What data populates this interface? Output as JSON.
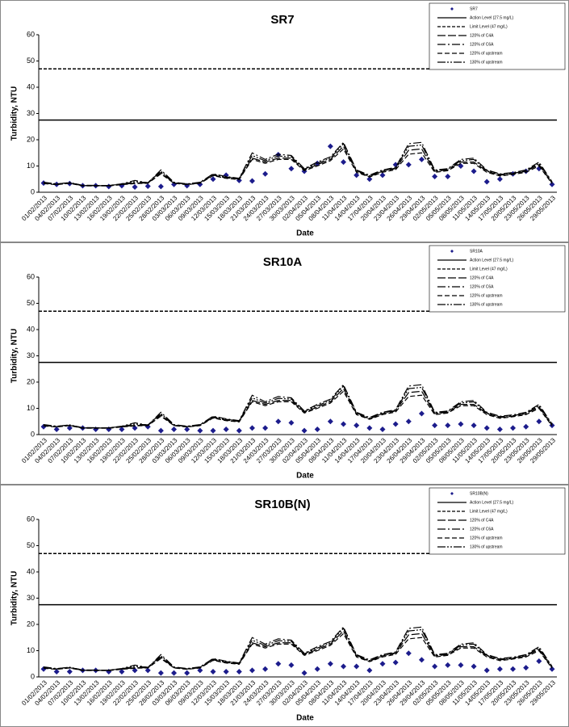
{
  "chart_data": [
    {
      "type": "line",
      "title": "SR7",
      "xlabel": "Date",
      "ylabel": "Turbidity, NTU",
      "categories": [
        "01/02/2013",
        "04/02/2013",
        "07/02/2013",
        "10/02/2013",
        "13/02/2013",
        "16/02/2013",
        "19/02/2013",
        "22/02/2013",
        "25/02/2013",
        "28/02/2013",
        "03/03/2013",
        "06/03/2013",
        "09/03/2013",
        "12/03/2013",
        "15/03/2013",
        "18/03/2013",
        "21/03/2013",
        "24/03/2013",
        "27/03/2013",
        "30/03/2013",
        "02/04/2013",
        "05/04/2013",
        "08/04/2013",
        "11/04/2013",
        "14/04/2013",
        "17/04/2013",
        "20/04/2013",
        "23/04/2013",
        "26/04/2013",
        "29/04/2013",
        "02/05/2013",
        "05/05/2013",
        "08/05/2013",
        "11/05/2013",
        "14/05/2013",
        "17/05/2013",
        "20/05/2013",
        "23/05/2013",
        "26/05/2013",
        "29/05/2013"
      ],
      "ylim": [
        0,
        60
      ],
      "yticks": [
        0,
        10,
        20,
        30,
        40,
        50,
        60
      ],
      "hlines": [
        {
          "name": "Action Level (27.5 mg/L)",
          "value": 27.5,
          "dash": "solid",
          "color": "#000000"
        },
        {
          "name": "Limit Level (47 mg/L)",
          "value": 47,
          "dash": "short",
          "color": "#000000"
        }
      ],
      "series": [
        {
          "name": "SR7",
          "style": "marker",
          "color": "#1c1c8c",
          "values": [
            3.5,
            3,
            3.3,
            2.5,
            2.5,
            2.2,
            2.5,
            2,
            2.3,
            2.2,
            3,
            2.5,
            3,
            5,
            6.5,
            4.5,
            4.3,
            7,
            14.3,
            9,
            8,
            11,
            17.5,
            11.5,
            6.5,
            5,
            6.5,
            10.5,
            10.5,
            12.5,
            6,
            6,
            10,
            8,
            4,
            5,
            7,
            8,
            9,
            3
          ]
        },
        {
          "name": "120% of C4A",
          "style": "long",
          "color": "#000000",
          "values": [
            3.5,
            3,
            3.5,
            2.5,
            2.5,
            2.5,
            3,
            3.5,
            3.5,
            7.5,
            3.5,
            3,
            3.5,
            6.5,
            5.5,
            5,
            13,
            11.5,
            13,
            13,
            8.5,
            10.5,
            12.5,
            17.5,
            8,
            6,
            8,
            9,
            16,
            16.5,
            8,
            8.5,
            11.5,
            11.5,
            8,
            6.5,
            7,
            8,
            10.5,
            3.5
          ]
        },
        {
          "name": "120% of C6A",
          "style": "dashdot",
          "color": "#000000",
          "values": [
            3.8,
            3.2,
            3.6,
            2.7,
            2.6,
            2.6,
            3.2,
            4.5,
            3.6,
            8.5,
            3.8,
            3.2,
            3.8,
            7,
            6,
            5.3,
            15,
            12.5,
            14.5,
            14,
            9,
            11.5,
            13.5,
            19,
            8.5,
            6.5,
            8.5,
            9.5,
            18.5,
            19,
            8.5,
            9,
            12.5,
            13,
            8.5,
            7,
            7.5,
            8.5,
            11.5,
            4
          ]
        },
        {
          "name": "120% of upstream",
          "style": "medium",
          "color": "#000000",
          "values": [
            3.3,
            2.9,
            3.4,
            2.4,
            2.4,
            2.4,
            2.9,
            3.3,
            3.4,
            7,
            3.4,
            2.9,
            3.4,
            6.3,
            5.3,
            4.8,
            12.5,
            11,
            12.5,
            12.5,
            8.2,
            10,
            12,
            16.5,
            7.6,
            5.8,
            7.6,
            8.6,
            14.5,
            15,
            7.6,
            8.2,
            11,
            11,
            7.6,
            6.2,
            6.8,
            7.6,
            10,
            3.3
          ]
        },
        {
          "name": "130% of upstream",
          "style": "dashdotdot",
          "color": "#000000",
          "values": [
            3.6,
            3.1,
            3.7,
            2.6,
            2.6,
            2.6,
            3.1,
            4,
            3.7,
            8,
            3.6,
            3.1,
            3.7,
            6.8,
            5.8,
            5.2,
            14,
            12,
            13.8,
            13.5,
            8.8,
            11,
            13,
            18.5,
            8.2,
            6.2,
            8.2,
            9.2,
            17.5,
            18,
            8.2,
            8.8,
            12,
            12.5,
            8.2,
            6.8,
            7.2,
            8.2,
            11,
            3.8
          ]
        }
      ]
    },
    {
      "type": "line",
      "title": "SR10A",
      "xlabel": "Date",
      "ylabel": "Turbidity, NTU",
      "categories": [
        "01/02/2013",
        "04/02/2013",
        "07/02/2013",
        "10/02/2013",
        "13/02/2013",
        "16/02/2013",
        "19/02/2013",
        "22/02/2013",
        "25/02/2013",
        "28/02/2013",
        "03/03/2013",
        "06/03/2013",
        "09/03/2013",
        "12/03/2013",
        "15/03/2013",
        "18/03/2013",
        "21/03/2013",
        "24/03/2013",
        "27/03/2013",
        "30/03/2013",
        "02/04/2013",
        "05/04/2013",
        "08/04/2013",
        "11/04/2013",
        "14/04/2013",
        "17/04/2013",
        "20/04/2013",
        "23/04/2013",
        "26/04/2013",
        "29/04/2013",
        "02/05/2013",
        "05/05/2013",
        "08/05/2013",
        "11/05/2013",
        "14/05/2013",
        "17/05/2013",
        "20/05/2013",
        "23/05/2013",
        "26/05/2013",
        "29/05/2013"
      ],
      "ylim": [
        0,
        60
      ],
      "yticks": [
        0,
        10,
        20,
        30,
        40,
        50,
        60
      ],
      "hlines": [
        {
          "name": "Action Level (27.5 mg/L)",
          "value": 27.5,
          "dash": "solid",
          "color": "#000000"
        },
        {
          "name": "Limit Level (47 mg/L)",
          "value": 47,
          "dash": "short",
          "color": "#000000"
        }
      ],
      "series": [
        {
          "name": "SR10A",
          "style": "marker",
          "color": "#1c1c8c",
          "values": [
            3,
            2,
            2.5,
            2.5,
            2,
            2,
            2,
            2.5,
            3,
            1.5,
            2,
            2,
            1.5,
            1.5,
            2,
            1.5,
            2.5,
            2.5,
            5,
            4.5,
            1.5,
            2,
            5,
            4,
            3.5,
            2.5,
            2,
            4,
            5,
            8,
            3.5,
            3.5,
            4,
            3.5,
            2.5,
            2,
            2.5,
            3,
            5,
            3.5
          ]
        },
        {
          "name": "120% of C4A",
          "style": "long",
          "color": "#000000",
          "values": [
            3.5,
            3,
            3.5,
            2.5,
            2.5,
            2.5,
            3,
            3.5,
            3.5,
            7.5,
            3.5,
            3,
            3.5,
            6.5,
            5.5,
            5,
            13,
            11.5,
            13,
            13,
            8.5,
            10.5,
            12.5,
            17.5,
            8,
            6,
            8,
            9,
            16,
            16.5,
            8,
            8.5,
            11.5,
            11.5,
            8,
            6.5,
            7,
            8,
            10.5,
            3.5
          ]
        },
        {
          "name": "120% of C6A",
          "style": "dashdot",
          "color": "#000000",
          "values": [
            3.8,
            3.2,
            3.6,
            2.7,
            2.6,
            2.6,
            3.2,
            4.5,
            3.6,
            8.5,
            3.8,
            3.2,
            3.8,
            7,
            6,
            5.3,
            15,
            12.5,
            14.5,
            14,
            9,
            11.5,
            13.5,
            19,
            8.5,
            6.5,
            8.5,
            9.5,
            18.5,
            19,
            8.5,
            9,
            12.5,
            13,
            8.5,
            7,
            7.5,
            8.5,
            11.5,
            4
          ]
        },
        {
          "name": "120% of upstream",
          "style": "medium",
          "color": "#000000",
          "values": [
            3.3,
            2.9,
            3.4,
            2.4,
            2.4,
            2.4,
            2.9,
            3.3,
            3.4,
            7,
            3.4,
            2.9,
            3.4,
            6.3,
            5.3,
            4.8,
            12.5,
            11,
            12.5,
            12.5,
            8.2,
            10,
            12,
            16.5,
            7.6,
            5.8,
            7.6,
            8.6,
            14.5,
            15,
            7.6,
            8.2,
            11,
            11,
            7.6,
            6.2,
            6.8,
            7.6,
            10,
            3.3
          ]
        },
        {
          "name": "130% of upstream",
          "style": "dashdotdot",
          "color": "#000000",
          "values": [
            3.6,
            3.1,
            3.7,
            2.6,
            2.6,
            2.6,
            3.1,
            4,
            3.7,
            8,
            3.6,
            3.1,
            3.7,
            6.8,
            5.8,
            5.2,
            14,
            12,
            13.8,
            13.5,
            8.8,
            11,
            13,
            18.5,
            8.2,
            6.2,
            8.2,
            9.2,
            17.5,
            18,
            8.2,
            8.8,
            12,
            12.5,
            8.2,
            6.8,
            7.2,
            8.2,
            11,
            3.8
          ]
        }
      ]
    },
    {
      "type": "line",
      "title": "SR10B(N)",
      "xlabel": "Date",
      "ylabel": "Turbidity, NTU",
      "categories": [
        "01/02/2013",
        "04/02/2013",
        "07/02/2013",
        "10/02/2013",
        "13/02/2013",
        "16/02/2013",
        "19/02/2013",
        "22/02/2013",
        "25/02/2013",
        "28/02/2013",
        "03/03/2013",
        "06/03/2013",
        "09/03/2013",
        "12/03/2013",
        "15/03/2013",
        "18/03/2013",
        "21/03/2013",
        "24/03/2013",
        "27/03/2013",
        "30/03/2013",
        "02/04/2013",
        "05/04/2013",
        "08/04/2013",
        "11/04/2013",
        "14/04/2013",
        "17/04/2013",
        "20/04/2013",
        "23/04/2013",
        "26/04/2013",
        "29/04/2013",
        "02/05/2013",
        "05/05/2013",
        "08/05/2013",
        "11/05/2013",
        "14/05/2013",
        "17/05/2013",
        "20/05/2013",
        "23/05/2013",
        "26/05/2013",
        "29/05/2013"
      ],
      "ylim": [
        0,
        60
      ],
      "yticks": [
        0,
        10,
        20,
        30,
        40,
        50,
        60
      ],
      "hlines": [
        {
          "name": "Action Level (27.5 mg/L)",
          "value": 27.5,
          "dash": "solid",
          "color": "#000000"
        },
        {
          "name": "Limit Level (47 mg/L)",
          "value": 47,
          "dash": "short",
          "color": "#000000"
        }
      ],
      "series": [
        {
          "name": "SR10B(N)",
          "style": "marker",
          "color": "#1c1c8c",
          "values": [
            3,
            2,
            2,
            2.5,
            2.5,
            2,
            2,
            2.5,
            2.5,
            1.5,
            1.5,
            1.5,
            2.5,
            2,
            2,
            2,
            2.5,
            3,
            5,
            4.5,
            1.5,
            3,
            5,
            4,
            4,
            2.5,
            5,
            5.5,
            9,
            6.5,
            4,
            4.5,
            4.5,
            4,
            2.5,
            3,
            3,
            3.5,
            6,
            3
          ]
        },
        {
          "name": "120% of C4A",
          "style": "long",
          "color": "#000000",
          "values": [
            3.5,
            3,
            3.5,
            2.5,
            2.5,
            2.5,
            3,
            3.5,
            3.5,
            7.5,
            3.5,
            3,
            3.5,
            6.5,
            5.5,
            5,
            13,
            11.5,
            13,
            13,
            8.5,
            10.5,
            12.5,
            17.5,
            8,
            6,
            8,
            9,
            16,
            16.5,
            8,
            8.5,
            11.5,
            11.5,
            8,
            6.5,
            7,
            8,
            10.5,
            3.5
          ]
        },
        {
          "name": "120% of C6A",
          "style": "dashdot",
          "color": "#000000",
          "values": [
            3.8,
            3.2,
            3.6,
            2.7,
            2.6,
            2.6,
            3.2,
            4.5,
            3.6,
            8.5,
            3.8,
            3.2,
            3.8,
            7,
            6,
            5.3,
            15,
            12.5,
            14.5,
            14,
            9,
            11.5,
            13.5,
            19,
            8.5,
            6.5,
            8.5,
            9.5,
            18.5,
            19,
            8.5,
            9,
            12.5,
            13,
            8.5,
            7,
            7.5,
            8.5,
            11.5,
            4
          ]
        },
        {
          "name": "120% of upstream",
          "style": "medium",
          "color": "#000000",
          "values": [
            3.3,
            2.9,
            3.4,
            2.4,
            2.4,
            2.4,
            2.9,
            3.3,
            3.4,
            7,
            3.4,
            2.9,
            3.4,
            6.3,
            5.3,
            4.8,
            12.5,
            11,
            12.5,
            12.5,
            8.2,
            10,
            12,
            16.5,
            7.6,
            5.8,
            7.6,
            8.6,
            14.5,
            15,
            7.6,
            8.2,
            11,
            11,
            7.6,
            6.2,
            6.8,
            7.6,
            10,
            3.3
          ]
        },
        {
          "name": "130% of upstream",
          "style": "dashdotdot",
          "color": "#000000",
          "values": [
            3.6,
            3.1,
            3.7,
            2.6,
            2.6,
            2.6,
            3.1,
            4,
            3.7,
            8,
            3.6,
            3.1,
            3.7,
            6.8,
            5.8,
            5.2,
            14,
            12,
            13.8,
            13.5,
            8.8,
            11,
            13,
            18.5,
            8.2,
            6.2,
            8.2,
            9.2,
            17.5,
            18,
            8.2,
            8.8,
            12,
            12.5,
            8.2,
            6.8,
            7.2,
            8.2,
            11,
            3.8
          ]
        }
      ]
    }
  ]
}
